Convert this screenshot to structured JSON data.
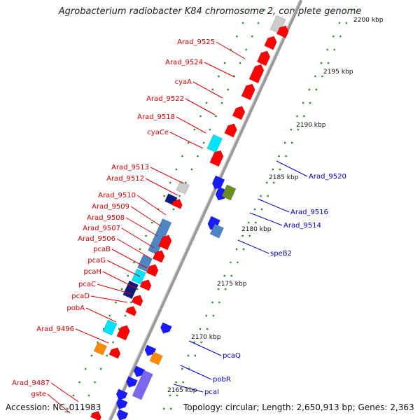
{
  "title": "Agrobacterium radiobacter K84 chromosome 2, complete genome",
  "footer": {
    "accession": "Accession: NC_011983",
    "topology": "Topology: circular; Length: 2,650,913 bp; Genes: 2,363"
  },
  "ticks": [
    "2200 kbp",
    "2195 kbp",
    "2190 kbp",
    "2185 kbp",
    "2180 kbp",
    "2175 kbp",
    "2170 kbp",
    "2165 kbp"
  ],
  "left_labels": [
    "Arad_9525",
    "Arad_9524",
    "cyaA",
    "Arad_9522",
    "Arad_9518",
    "cyaCe",
    "Arad_9513",
    "Arad_9512",
    "Arad_9510",
    "Arad_9509",
    "Arad_9508",
    "Arad_9507",
    "Arad_9506",
    "pcaB",
    "pcaG",
    "pcaH",
    "pcaC",
    "pcaD",
    "pobA",
    "Arad_9496",
    "Arad_9487",
    "gste"
  ],
  "right_labels": [
    "Arad_9520",
    "Arad_9516",
    "Arad_9514",
    "speB2",
    "pcaQ",
    "pobR",
    "pcaI"
  ],
  "colors": {
    "axis": "#999999",
    "forward_gene": "#ff0000",
    "reverse_gene": "#1a1aff",
    "left_label": "#d40000",
    "right_label": "#0000c8",
    "dots": "#2e8b2e",
    "cyan_feature": "#00e5ff",
    "steelblue_feature": "#4d86c4",
    "navy_feature": "#0a1a80",
    "olive_feature": "#6b8e23",
    "orange_feature": "#ff8c00",
    "violet_feature": "#7b68ee",
    "grey_feature": "#cccccc"
  }
}
